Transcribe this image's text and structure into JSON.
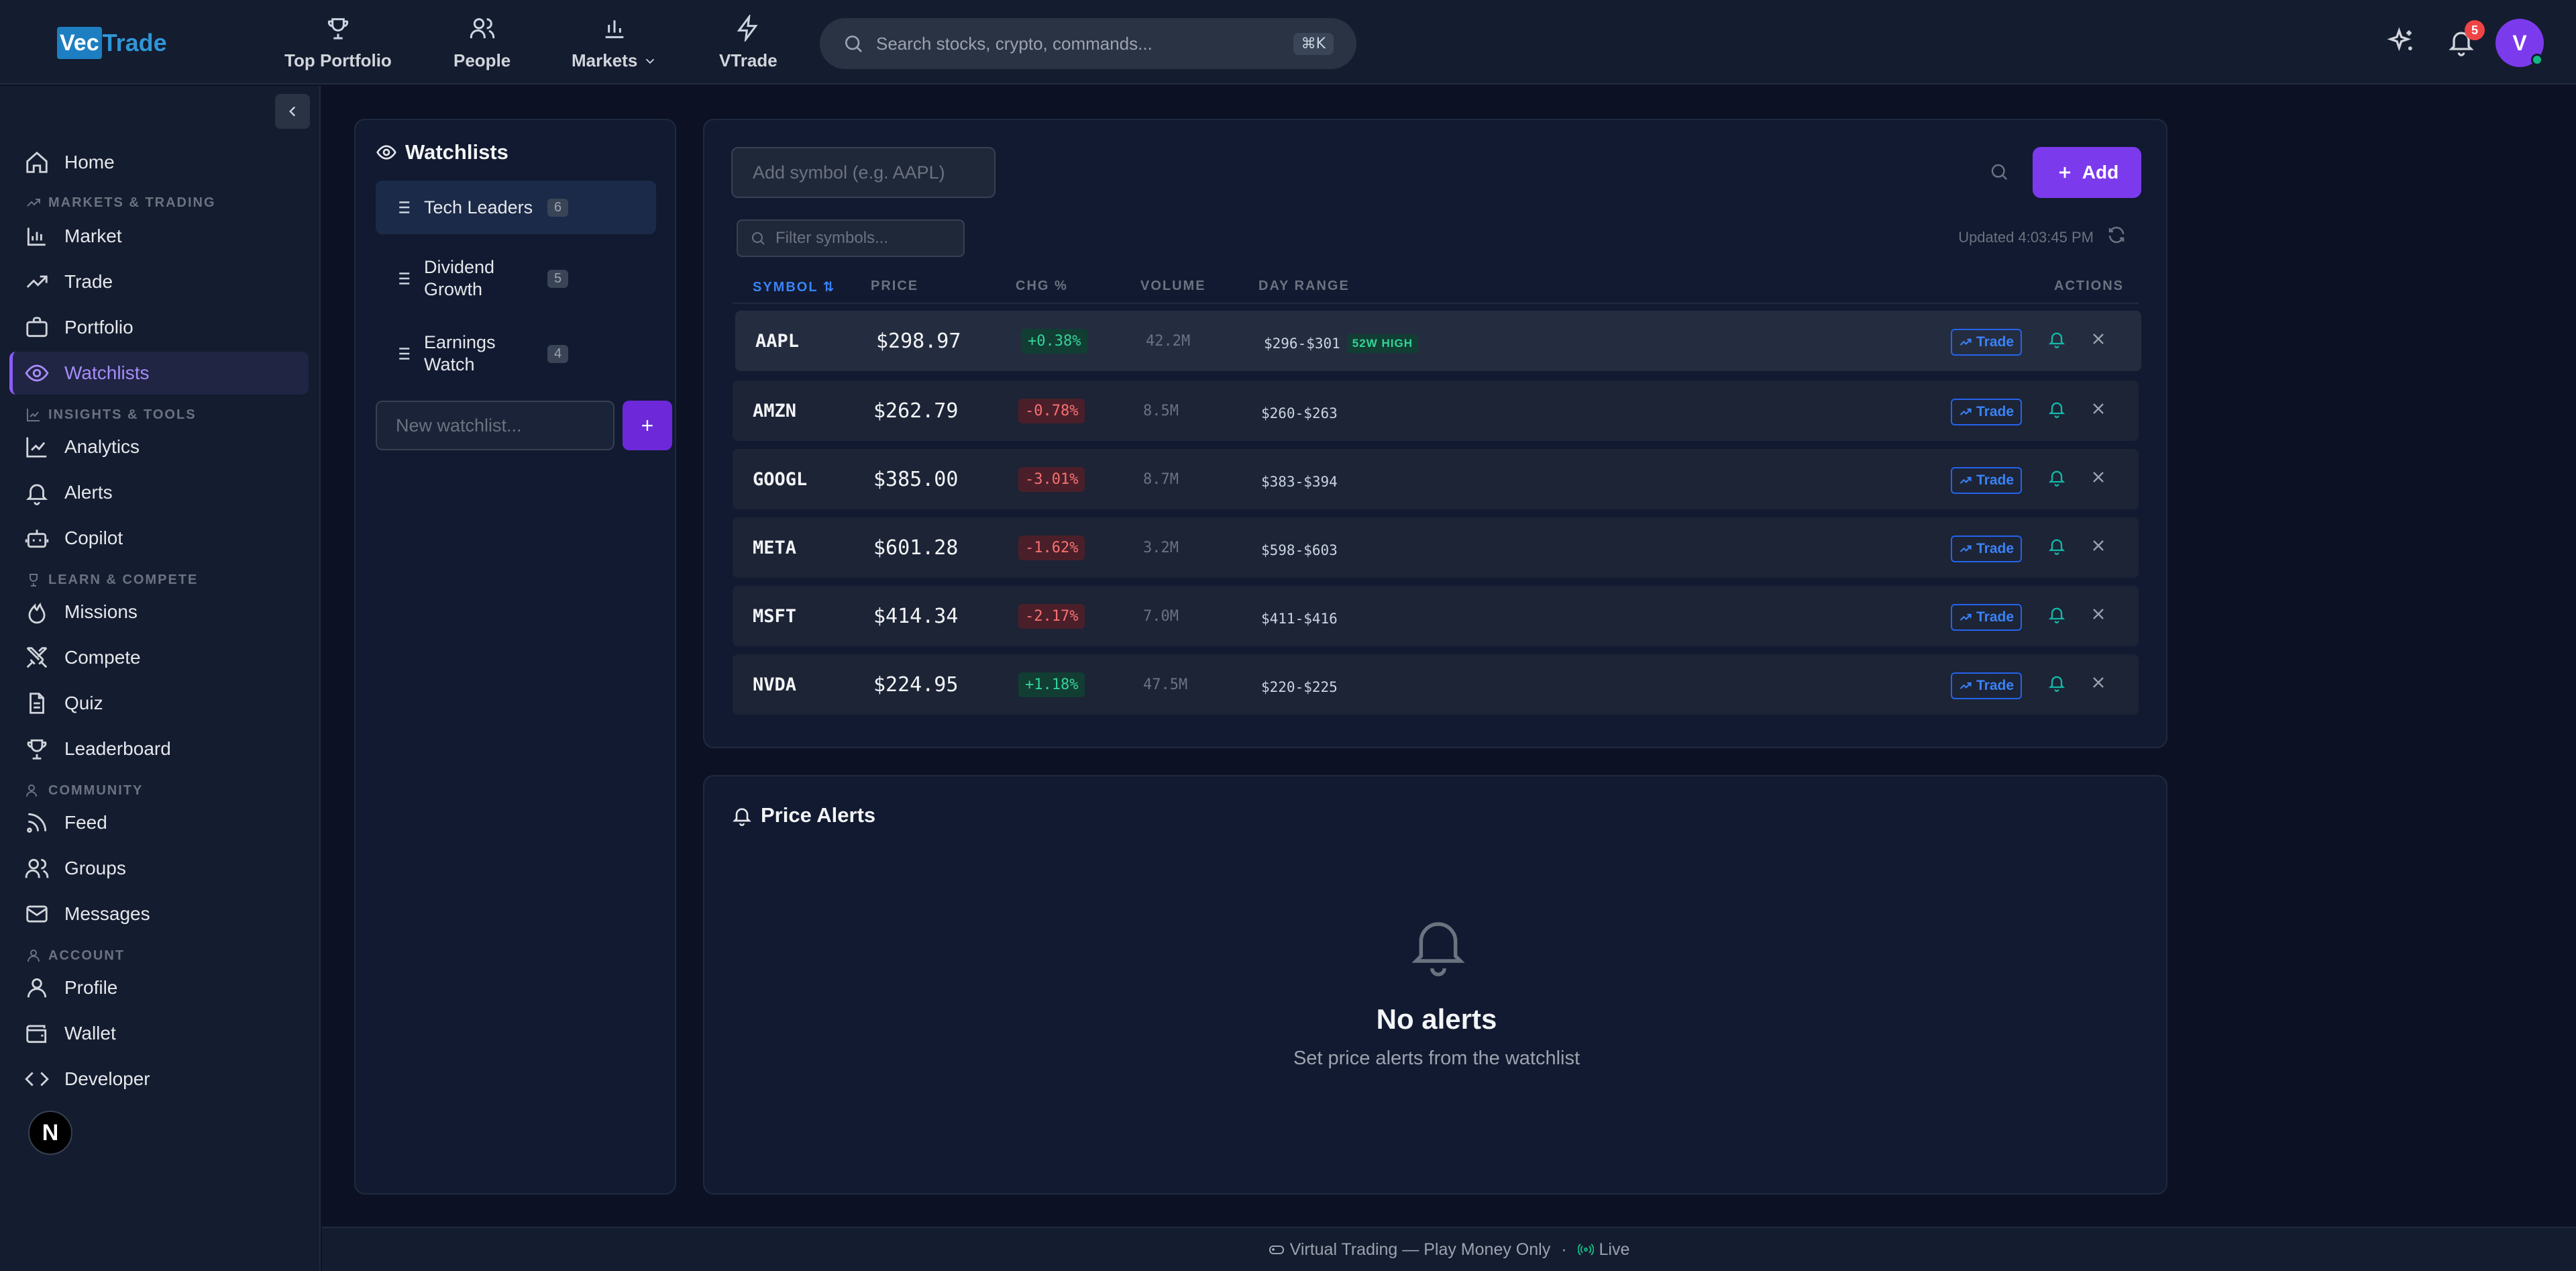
{
  "brand": {
    "logo_box": "Vec",
    "logo_text": "Trade"
  },
  "topnav": [
    {
      "label": "Top Portfolio",
      "icon": "trophy-icon"
    },
    {
      "label": "People",
      "icon": "users-icon"
    },
    {
      "label": "Markets",
      "icon": "bar-chart-icon"
    },
    {
      "label": "VTrade",
      "icon": "lightning-icon"
    }
  ],
  "search": {
    "placeholder": "Search stocks, crypto, commands...",
    "shortcut": "⌘K"
  },
  "notifications": {
    "count": "5"
  },
  "user": {
    "initial": "V"
  },
  "sidebar": {
    "items": [
      {
        "label": "Home",
        "icon": "home-icon"
      },
      {
        "label": "Market",
        "icon": "bar-chart-icon"
      },
      {
        "label": "Trade",
        "icon": "trending-up-icon"
      },
      {
        "label": "Portfolio",
        "icon": "briefcase-icon"
      },
      {
        "label": "Watchlists",
        "icon": "eye-icon",
        "active": true
      },
      {
        "label": "Analytics",
        "icon": "line-chart-icon"
      },
      {
        "label": "Alerts",
        "icon": "bell-icon"
      },
      {
        "label": "Copilot",
        "icon": "bot-icon"
      },
      {
        "label": "Missions",
        "icon": "flame-icon"
      },
      {
        "label": "Compete",
        "icon": "swords-icon"
      },
      {
        "label": "Quiz",
        "icon": "document-icon"
      },
      {
        "label": "Leaderboard",
        "icon": "trophy-icon"
      },
      {
        "label": "Feed",
        "icon": "rss-icon"
      },
      {
        "label": "Groups",
        "icon": "users-icon"
      },
      {
        "label": "Messages",
        "icon": "mail-icon"
      },
      {
        "label": "Profile",
        "icon": "user-icon"
      },
      {
        "label": "Wallet",
        "icon": "wallet-icon"
      },
      {
        "label": "Developer",
        "icon": "code-icon"
      }
    ],
    "sections": [
      "MARKETS & TRADING",
      "INSIGHTS & TOOLS",
      "LEARN & COMPETE",
      "COMMUNITY",
      "ACCOUNT"
    ],
    "bottom_badge": "N"
  },
  "watchlists": {
    "title": "Watchlists",
    "items": [
      {
        "name": "Tech Leaders",
        "count": "6"
      },
      {
        "name": "Dividend Growth",
        "count": "5"
      },
      {
        "name": "Earnings Watch",
        "count": "4"
      }
    ],
    "new_placeholder": "New watchlist...",
    "new_button": "+"
  },
  "symbols": {
    "add_placeholder": "Add symbol (e.g. AAPL)",
    "add_button": "Add",
    "filter_placeholder": "Filter symbols...",
    "updated": "Updated 4:03:45 PM",
    "headers": {
      "symbol": "SYMBOL ⇅",
      "price": "PRICE",
      "chg": "CHG %",
      "volume": "VOLUME",
      "range": "DAY RANGE",
      "actions": "ACTIONS"
    },
    "trade_label": "Trade",
    "high_tag": "52W HIGH",
    "rows": [
      {
        "symbol": "AAPL",
        "price": "$298.97",
        "chg": "+0.38%",
        "dir": "up",
        "volume": "42.2M",
        "range": "$296-$301",
        "high": true
      },
      {
        "symbol": "AMZN",
        "price": "$262.79",
        "chg": "-0.78%",
        "dir": "down",
        "volume": "8.5M",
        "range": "$260-$263"
      },
      {
        "symbol": "GOOGL",
        "price": "$385.00",
        "chg": "-3.01%",
        "dir": "down",
        "volume": "8.7M",
        "range": "$383-$394"
      },
      {
        "symbol": "META",
        "price": "$601.28",
        "chg": "-1.62%",
        "dir": "down",
        "volume": "3.2M",
        "range": "$598-$603"
      },
      {
        "symbol": "MSFT",
        "price": "$414.34",
        "chg": "-2.17%",
        "dir": "down",
        "volume": "7.0M",
        "range": "$411-$416"
      },
      {
        "symbol": "NVDA",
        "price": "$224.95",
        "chg": "+1.18%",
        "dir": "up",
        "volume": "47.5M",
        "range": "$220-$225"
      }
    ]
  },
  "alerts": {
    "title": "Price Alerts",
    "empty_title": "No alerts",
    "empty_sub": "Set price alerts from the watchlist"
  },
  "footer": {
    "mode": "Virtual Trading — Play Money Only",
    "sep": "·",
    "live": "Live"
  },
  "colors": {
    "accent": "#7c3aed",
    "up": "#34d399",
    "down": "#f87171",
    "link": "#3b82f6"
  }
}
